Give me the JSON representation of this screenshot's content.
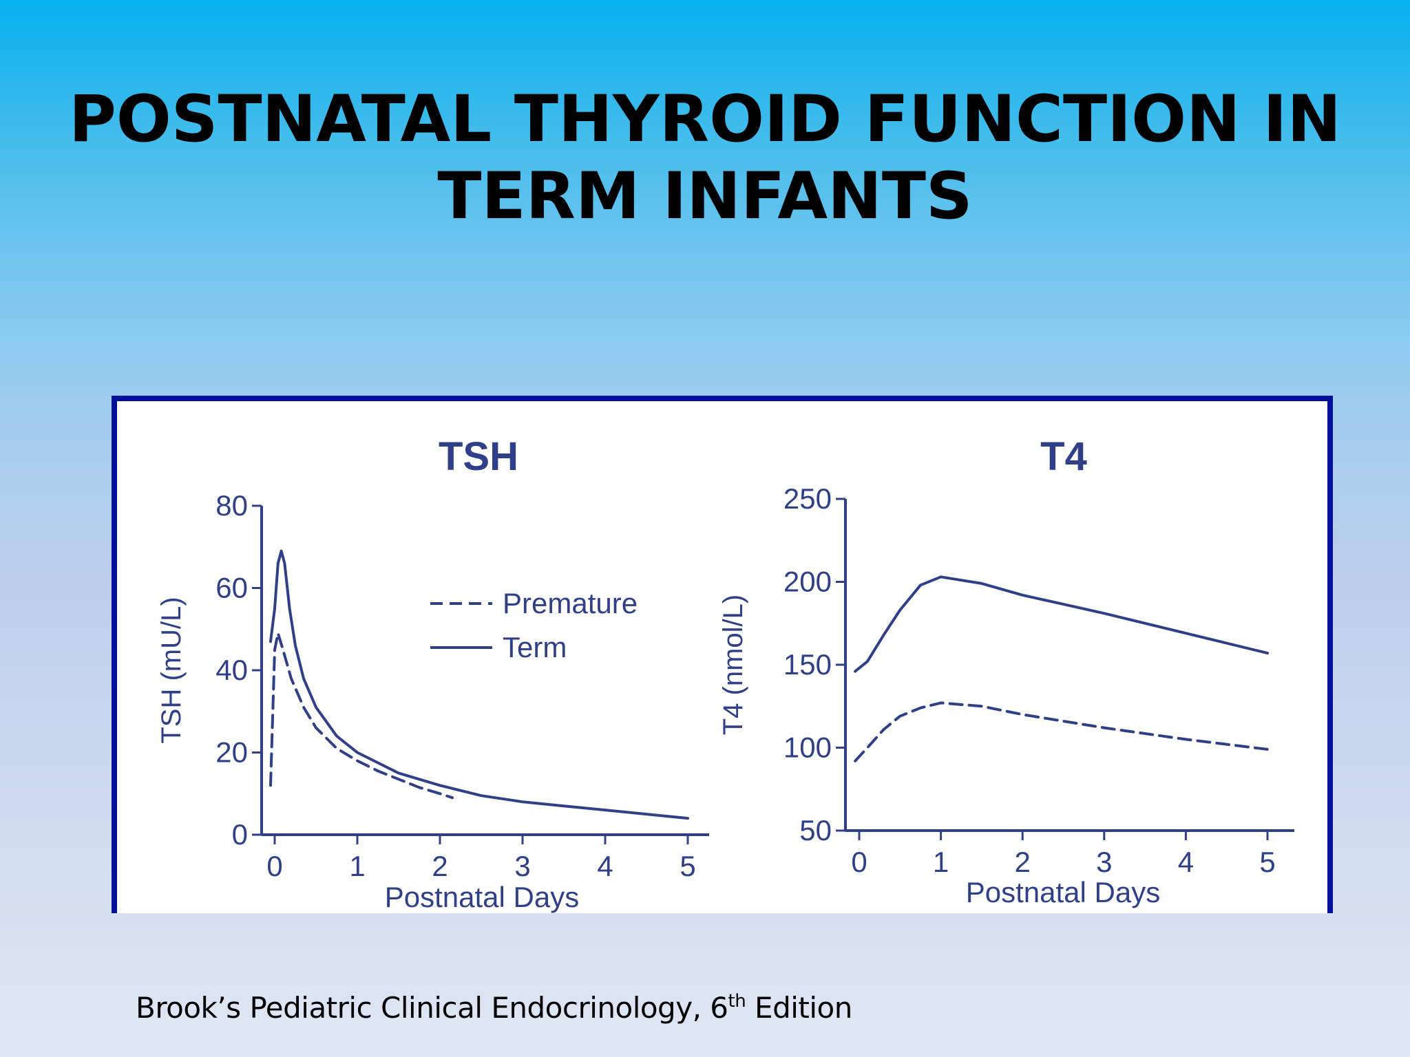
{
  "slide": {
    "title_line1": "POSTNATAL THYROID FUNCTION IN",
    "title_line2": "TERM INFANTS",
    "citation_prefix": "Brook’s Pediatric Clinical Endocrinology, 6",
    "citation_sup": "th",
    "citation_suffix": " Edition"
  },
  "colors": {
    "ink": "#2f3f88",
    "frame": "#000f9a",
    "text": "#000000"
  },
  "chart_data": [
    {
      "type": "line",
      "title": "TSH",
      "xlabel": "Postnatal Days",
      "ylabel": "TSH (mU/L)",
      "xlim": [
        0,
        5
      ],
      "ylim": [
        0,
        80
      ],
      "xticks": [
        0,
        1,
        2,
        3,
        4,
        5
      ],
      "yticks": [
        0,
        20,
        40,
        60,
        80
      ],
      "legend": {
        "position": "top-right",
        "items": [
          "Premature",
          "Term"
        ]
      },
      "series": [
        {
          "name": "Premature",
          "style": "dashed",
          "points": [
            [
              -0.05,
              12
            ],
            [
              0.0,
              45
            ],
            [
              0.04,
              49
            ],
            [
              0.1,
              45
            ],
            [
              0.2,
              38
            ],
            [
              0.35,
              31
            ],
            [
              0.5,
              26
            ],
            [
              0.75,
              21
            ],
            [
              1.0,
              18
            ],
            [
              1.25,
              15.5
            ],
            [
              1.5,
              13.5
            ],
            [
              1.75,
              11.5
            ],
            [
              2.0,
              10
            ],
            [
              2.15,
              9
            ]
          ]
        },
        {
          "name": "Term",
          "style": "solid",
          "points": [
            [
              -0.05,
              47
            ],
            [
              0.0,
              55
            ],
            [
              0.04,
              66
            ],
            [
              0.08,
              69
            ],
            [
              0.12,
              66
            ],
            [
              0.18,
              55
            ],
            [
              0.25,
              46
            ],
            [
              0.35,
              38
            ],
            [
              0.5,
              31
            ],
            [
              0.75,
              24
            ],
            [
              1.0,
              20
            ],
            [
              1.5,
              15
            ],
            [
              2.0,
              12
            ],
            [
              2.5,
              9.5
            ],
            [
              3.0,
              8
            ],
            [
              3.5,
              7
            ],
            [
              4.0,
              6
            ],
            [
              4.5,
              5
            ],
            [
              5.0,
              4
            ]
          ]
        }
      ]
    },
    {
      "type": "line",
      "title": "T4",
      "xlabel": "Postnatal Days",
      "ylabel": "T4 (nmol/L)",
      "xlim": [
        0,
        5
      ],
      "ylim": [
        50,
        250
      ],
      "xticks": [
        0,
        1,
        2,
        3,
        4,
        5
      ],
      "yticks": [
        50,
        100,
        150,
        200,
        250
      ],
      "series": [
        {
          "name": "Term",
          "style": "solid",
          "points": [
            [
              -0.05,
              146
            ],
            [
              0.1,
              152
            ],
            [
              0.3,
              168
            ],
            [
              0.5,
              183
            ],
            [
              0.75,
              198
            ],
            [
              1.0,
              203
            ],
            [
              1.5,
              199
            ],
            [
              2.0,
              192
            ],
            [
              3.0,
              181
            ],
            [
              4.0,
              169
            ],
            [
              5.0,
              157
            ]
          ]
        },
        {
          "name": "Premature",
          "style": "dashed",
          "points": [
            [
              -0.05,
              92
            ],
            [
              0.1,
              100
            ],
            [
              0.3,
              111
            ],
            [
              0.5,
              119
            ],
            [
              0.75,
              124
            ],
            [
              1.0,
              127
            ],
            [
              1.5,
              125
            ],
            [
              2.0,
              120
            ],
            [
              3.0,
              112
            ],
            [
              4.0,
              105
            ],
            [
              5.0,
              99
            ]
          ]
        }
      ]
    }
  ]
}
